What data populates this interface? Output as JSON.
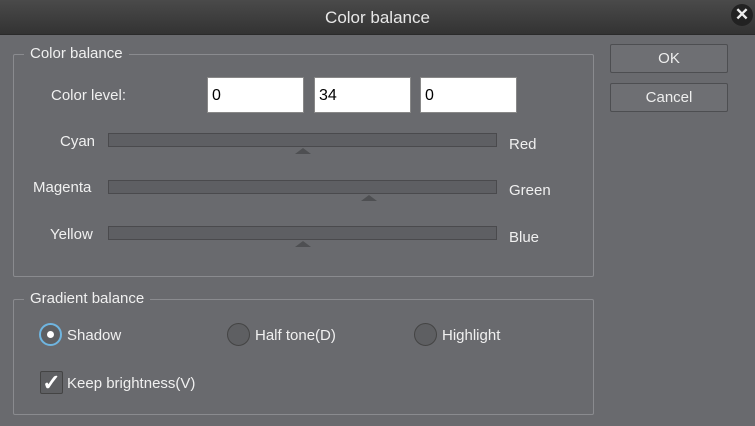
{
  "window": {
    "title": "Color balance"
  },
  "color_balance": {
    "group_label": "Color balance",
    "level_label": "Color level:",
    "levels": [
      "0",
      "34",
      "0"
    ],
    "sliders": [
      {
        "left": "Cyan",
        "right": "Red",
        "value": 0
      },
      {
        "left": "Magenta",
        "right": "Green",
        "value": 34
      },
      {
        "left": "Yellow",
        "right": "Blue",
        "value": 0
      }
    ],
    "range": [
      -100,
      100
    ]
  },
  "gradient_balance": {
    "group_label": "Gradient balance",
    "options": [
      {
        "label": "Shadow",
        "selected": true
      },
      {
        "label": "Half tone(D)",
        "selected": false
      },
      {
        "label": "Highlight",
        "selected": false
      }
    ],
    "keep_brightness": {
      "label": "Keep brightness(V)",
      "checked": true
    }
  },
  "buttons": {
    "ok": "OK",
    "cancel": "Cancel"
  }
}
